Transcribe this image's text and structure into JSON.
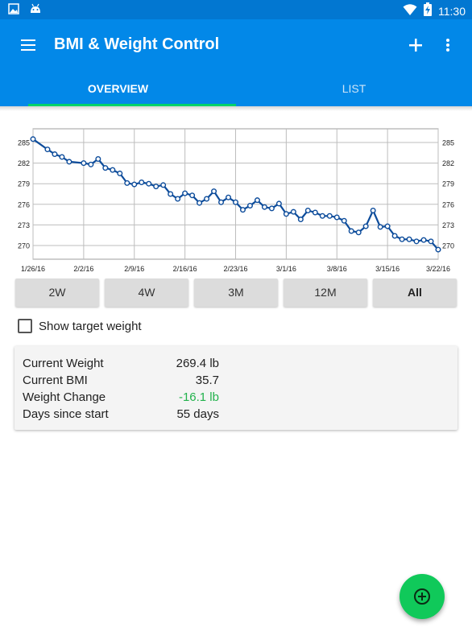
{
  "status_bar": {
    "time": "11:30"
  },
  "app_bar": {
    "title": "BMI & Weight Control"
  },
  "tabs": [
    {
      "label": "OVERVIEW",
      "active": true
    },
    {
      "label": "LIST",
      "active": false
    }
  ],
  "range_buttons": [
    {
      "label": "2W",
      "selected": false
    },
    {
      "label": "4W",
      "selected": false
    },
    {
      "label": "3M",
      "selected": false
    },
    {
      "label": "12M",
      "selected": false
    },
    {
      "label": "All",
      "selected": true
    }
  ],
  "target_weight": {
    "label": "Show target weight",
    "checked": false
  },
  "stats": [
    {
      "label": "Current Weight",
      "value": "269.4 lb"
    },
    {
      "label": "Current BMI",
      "value": "35.7"
    },
    {
      "label": "Weight Change",
      "value": "-16.1 lb"
    },
    {
      "label": "Days since start",
      "value": "55 days"
    }
  ],
  "colors": {
    "primary": "#0288e8",
    "status_bar": "#0277d1",
    "accent": "#00d26a",
    "fab": "#10c95a",
    "line": "#0d4c9b",
    "negative_change": "#22b24c"
  },
  "icons": {
    "menu": "menu-icon",
    "add": "plus-icon",
    "more": "more-vert-icon",
    "fab": "add-circle-icon"
  },
  "chart_data": {
    "type": "line",
    "title": "",
    "xlabel": "",
    "ylabel": "",
    "x_ticks": [
      "1/26/16",
      "2/2/16",
      "2/9/16",
      "2/16/16",
      "2/23/16",
      "3/1/16",
      "3/8/16",
      "3/15/16",
      "3/22/16"
    ],
    "y_ticks": [
      270,
      273,
      276,
      279,
      282,
      285
    ],
    "ylim": [
      268,
      287
    ],
    "xlim": [
      "1/26/16",
      "3/22/16"
    ],
    "grid": true,
    "series": [
      {
        "x": [
          "1/26/16",
          "1/28/16",
          "1/29/16",
          "1/30/16",
          "1/31/16",
          "2/2/16",
          "2/3/16",
          "2/4/16",
          "2/5/16",
          "2/6/16",
          "2/7/16",
          "2/8/16",
          "2/9/16",
          "2/10/16",
          "2/11/16",
          "2/12/16",
          "2/13/16",
          "2/14/16",
          "2/15/16",
          "2/16/16",
          "2/17/16",
          "2/18/16",
          "2/19/16",
          "2/20/16",
          "2/21/16",
          "2/22/16",
          "2/23/16",
          "2/24/16",
          "2/25/16",
          "2/26/16",
          "2/27/16",
          "2/28/16",
          "2/29/16",
          "3/1/16",
          "3/2/16",
          "3/3/16",
          "3/4/16",
          "3/5/16",
          "3/6/16",
          "3/7/16",
          "3/8/16",
          "3/9/16",
          "3/10/16",
          "3/11/16",
          "3/12/16",
          "3/13/16",
          "3/14/16",
          "3/15/16",
          "3/16/16",
          "3/17/16",
          "3/18/16",
          "3/19/16",
          "3/20/16",
          "3/21/16",
          "3/22/16"
        ],
        "values": [
          285.5,
          284.0,
          283.3,
          282.9,
          282.2,
          282.0,
          281.8,
          282.6,
          281.3,
          281.0,
          280.5,
          279.1,
          278.9,
          279.2,
          279.0,
          278.6,
          278.8,
          277.5,
          276.8,
          277.6,
          277.3,
          276.2,
          276.8,
          277.9,
          276.3,
          277.0,
          276.3,
          275.2,
          275.8,
          276.6,
          275.6,
          275.4,
          276.1,
          274.6,
          274.9,
          273.8,
          275.1,
          274.8,
          274.3,
          274.3,
          274.1,
          273.6,
          272.1,
          271.9,
          272.8,
          275.1,
          272.7,
          272.8,
          271.4,
          270.9,
          270.9,
          270.6,
          270.8,
          270.6,
          269.4
        ]
      }
    ]
  }
}
